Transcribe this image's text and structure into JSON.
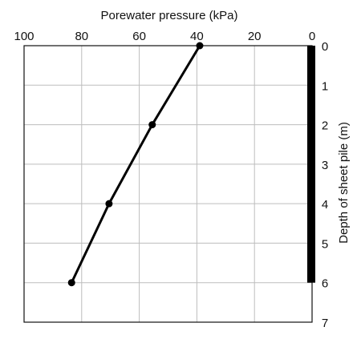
{
  "chart_data": {
    "type": "line",
    "xlabel": "Porewater pressure (kPa)",
    "ylabel": "Depth of sheet pile (m)",
    "xlim": [
      100,
      0
    ],
    "ylim": [
      0,
      7
    ],
    "x_ticks": [
      "100",
      "80",
      "60",
      "40",
      "20",
      "0"
    ],
    "y_ticks": [
      "0",
      "1",
      "2",
      "3",
      "4",
      "5",
      "6",
      "7"
    ],
    "grid": true,
    "series": [
      {
        "points": [
          {
            "pressure": 39,
            "depth": 0
          },
          {
            "pressure": 55.5,
            "depth": 2
          },
          {
            "pressure": 70.5,
            "depth": 4
          },
          {
            "pressure": 83.5,
            "depth": 6
          }
        ]
      }
    ],
    "sheet_pile": {
      "from_depth": 0,
      "to_depth": 6,
      "color": "#000000"
    },
    "line_color": "#000000"
  }
}
